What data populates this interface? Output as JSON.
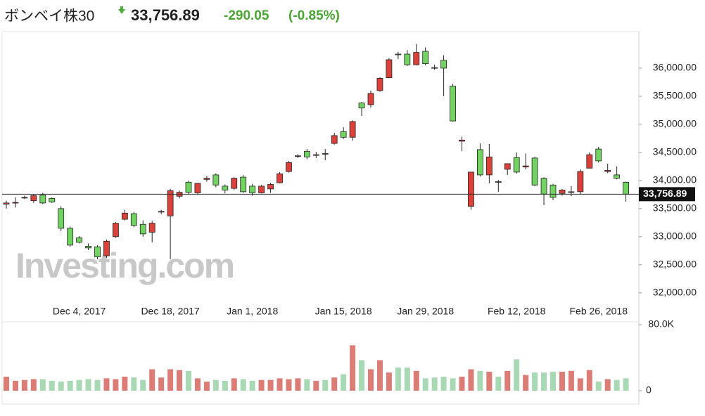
{
  "header": {
    "title": "ボンベイ株30",
    "change": "-290.05",
    "change_percent": "(-0.85%)"
  },
  "chart_data": {
    "type": "candlestick",
    "watermark": "Investing.com",
    "categories": [
      null,
      null,
      null,
      null,
      null,
      null,
      null,
      null,
      "Dec 4, 2017",
      null,
      null,
      null,
      null,
      null,
      null,
      null,
      null,
      null,
      "Dec 18, 2017",
      null,
      null,
      null,
      null,
      null,
      null,
      null,
      null,
      "Jan 1, 2018",
      null,
      null,
      null,
      null,
      null,
      null,
      null,
      null,
      null,
      "Jan 15, 2018",
      null,
      null,
      null,
      null,
      null,
      null,
      null,
      null,
      "Jan 29, 2018",
      null,
      null,
      null,
      null,
      null,
      null,
      null,
      null,
      null,
      "Feb 12, 2018",
      null,
      null,
      null,
      null,
      null,
      null,
      null,
      null,
      "Feb 26, 2018",
      null,
      null,
      null
    ],
    "ohlc": [
      [
        33580,
        33640,
        33500,
        33600
      ],
      [
        33600,
        33700,
        33520,
        33610
      ],
      [
        33690,
        33730,
        33670,
        33700
      ],
      [
        33640,
        33760,
        33600,
        33730
      ],
      [
        33740,
        33780,
        33580,
        33600
      ],
      [
        33680,
        33700,
        33600,
        33620
      ],
      [
        33500,
        33540,
        33100,
        33150
      ],
      [
        33150,
        33180,
        32820,
        32850
      ],
      [
        32980,
        33010,
        32880,
        32900
      ],
      [
        32830,
        32880,
        32760,
        32800
      ],
      [
        32820,
        32850,
        32600,
        32640
      ],
      [
        32660,
        32950,
        32620,
        32920
      ],
      [
        33000,
        33260,
        32980,
        33240
      ],
      [
        33310,
        33480,
        33290,
        33420
      ],
      [
        33410,
        33440,
        33170,
        33200
      ],
      [
        33220,
        33290,
        33000,
        33050
      ],
      [
        33080,
        33280,
        32900,
        33240
      ],
      [
        33440,
        33480,
        33400,
        33450
      ],
      [
        33370,
        33850,
        32600,
        33820
      ],
      [
        33720,
        33820,
        33680,
        33790
      ],
      [
        33970,
        34000,
        33760,
        33790
      ],
      [
        33780,
        33960,
        33760,
        33950
      ],
      [
        34020,
        34080,
        33980,
        34040
      ],
      [
        34100,
        34130,
        33880,
        33920
      ],
      [
        33900,
        33930,
        33770,
        33830
      ],
      [
        33860,
        34060,
        33830,
        34040
      ],
      [
        34060,
        34100,
        33780,
        33800
      ],
      [
        33900,
        33940,
        33730,
        33780
      ],
      [
        33780,
        33920,
        33770,
        33900
      ],
      [
        33850,
        33960,
        33780,
        33930
      ],
      [
        33960,
        34150,
        33950,
        34120
      ],
      [
        34160,
        34350,
        34140,
        34320
      ],
      [
        34430,
        34470,
        34400,
        34440
      ],
      [
        34520,
        34560,
        34380,
        34420
      ],
      [
        34450,
        34510,
        34400,
        34460
      ],
      [
        34480,
        34560,
        34360,
        34470
      ],
      [
        34660,
        34850,
        34640,
        34800
      ],
      [
        34870,
        34950,
        34740,
        34770
      ],
      [
        34770,
        35070,
        34710,
        35050
      ],
      [
        35380,
        35400,
        35150,
        35290
      ],
      [
        35350,
        35600,
        35300,
        35550
      ],
      [
        35600,
        35840,
        35580,
        35820
      ],
      [
        35830,
        36180,
        35820,
        36150
      ],
      [
        36250,
        36290,
        36160,
        36240
      ],
      [
        36250,
        36320,
        36040,
        36060
      ],
      [
        36060,
        36430,
        36050,
        36280
      ],
      [
        36300,
        36370,
        36050,
        36080
      ],
      [
        36010,
        36060,
        35970,
        36000
      ],
      [
        36140,
        36230,
        35500,
        36000
      ],
      [
        35680,
        35720,
        35050,
        35060
      ],
      [
        34700,
        34780,
        34520,
        34720
      ],
      [
        33540,
        34150,
        33480,
        34150
      ],
      [
        34550,
        34660,
        34070,
        34100
      ],
      [
        34100,
        34650,
        33950,
        34420
      ],
      [
        33980,
        34010,
        33800,
        33970
      ],
      [
        34200,
        34300,
        34100,
        34300
      ],
      [
        34410,
        34500,
        34120,
        34150
      ],
      [
        34240,
        34480,
        34200,
        34260
      ],
      [
        34400,
        34420,
        33900,
        33920
      ],
      [
        34040,
        34060,
        33560,
        33760
      ],
      [
        33920,
        33940,
        33650,
        33700
      ],
      [
        33770,
        33850,
        33730,
        33830
      ],
      [
        33800,
        33900,
        33720,
        33800
      ],
      [
        33800,
        34200,
        33760,
        34160
      ],
      [
        34220,
        34500,
        34220,
        34460
      ],
      [
        34560,
        34600,
        34320,
        34350
      ],
      [
        34160,
        34300,
        34130,
        34180
      ],
      [
        34100,
        34250,
        34020,
        34040
      ],
      [
        33970,
        33980,
        33620,
        33756.89
      ]
    ],
    "volume": [
      17000,
      12000,
      13000,
      14000,
      14000,
      12000,
      11000,
      12000,
      13000,
      14000,
      13000,
      15000,
      14000,
      17000,
      16000,
      13000,
      26000,
      16000,
      26000,
      25000,
      24000,
      15000,
      11000,
      13000,
      12000,
      15000,
      14000,
      12000,
      13000,
      13000,
      15000,
      14000,
      15000,
      14000,
      12000,
      13000,
      16000,
      20000,
      55000,
      37000,
      26000,
      37000,
      22000,
      28000,
      28000,
      24000,
      15000,
      16000,
      17000,
      15000,
      17000,
      26000,
      24000,
      23000,
      17000,
      24000,
      38000,
      19000,
      22000,
      22000,
      23000,
      23000,
      24000,
      15000,
      25000,
      11000,
      14000,
      13000,
      15000
    ],
    "last_value": 33756.89,
    "last_value_label": "33,756.89",
    "ylim": [
      31960,
      36650
    ],
    "yticks": [
      {
        "value": 32000,
        "label": "32,000.00"
      },
      {
        "value": 32500,
        "label": "32,500.00"
      },
      {
        "value": 33000,
        "label": "33,000.00"
      },
      {
        "value": 33500,
        "label": "33,500.00"
      },
      {
        "value": 34000,
        "label": "34,000.00"
      },
      {
        "value": 34500,
        "label": "34,500.00"
      },
      {
        "value": 35000,
        "label": "35,000.00"
      },
      {
        "value": 35500,
        "label": "35,500.00"
      },
      {
        "value": 36000,
        "label": "36,000.00"
      }
    ],
    "volume_ylim": [
      0,
      80000
    ],
    "volume_yticks": [
      0,
      {
        "value": 80000,
        "label": "80.0K"
      }
    ],
    "up_color": "#d9413a",
    "down_color": "#72d262",
    "volume_up_color": "#db7c76",
    "volume_down_color": "#a9d8b5",
    "grid": false
  }
}
